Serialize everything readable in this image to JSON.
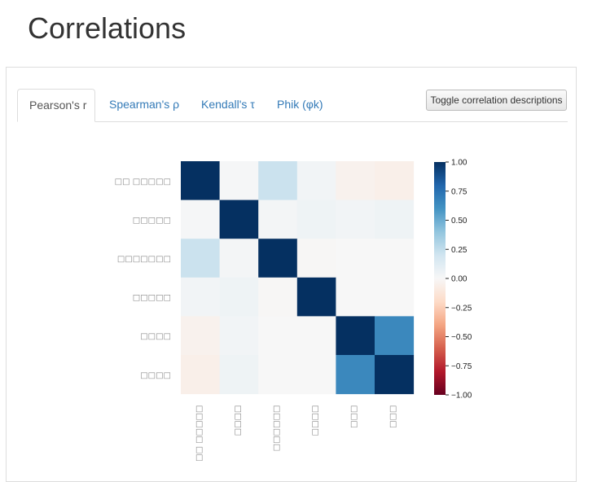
{
  "page": {
    "title": "Correlations"
  },
  "tabs": [
    {
      "label": "Pearson's r",
      "active": true
    },
    {
      "label": "Spearman's ρ",
      "active": false
    },
    {
      "label": "Kendall's τ",
      "active": false
    },
    {
      "label": "Phik (φk)",
      "active": false
    }
  ],
  "toggle_button": {
    "label": "Toggle correlation descriptions"
  },
  "colors": {
    "tab_link": "#337ab7",
    "max_positive": "#053061",
    "max_negative": "#67001f"
  },
  "chart_data": {
    "type": "heatmap",
    "row_labels": [
      "□□ □□□□□",
      "□□□□□",
      "□□□□□□□",
      "□□□□□",
      "□□□□",
      "□□□□"
    ],
    "col_labels": [
      "□□□□□ □□",
      "□□□□",
      "□□□□□□",
      "□□□□",
      "□□□",
      "□□□"
    ],
    "values": [
      [
        1.0,
        0.01,
        0.22,
        0.03,
        -0.04,
        -0.06
      ],
      [
        0.01,
        1.0,
        0.02,
        0.05,
        0.03,
        0.05
      ],
      [
        0.22,
        0.02,
        1.0,
        -0.01,
        0.0,
        0.0
      ],
      [
        0.03,
        0.05,
        -0.01,
        1.0,
        0.0,
        0.0
      ],
      [
        -0.04,
        0.03,
        0.0,
        0.0,
        1.0,
        0.65
      ],
      [
        -0.06,
        0.05,
        0.0,
        0.0,
        0.65,
        1.0
      ]
    ],
    "colorbar_ticks": [
      "1.00",
      "0.75",
      "0.50",
      "0.25",
      "0.00",
      "−0.25",
      "−0.50",
      "−0.75",
      "−1.00"
    ],
    "vmin": -1,
    "vmax": 1,
    "colormap": "RdBu"
  }
}
